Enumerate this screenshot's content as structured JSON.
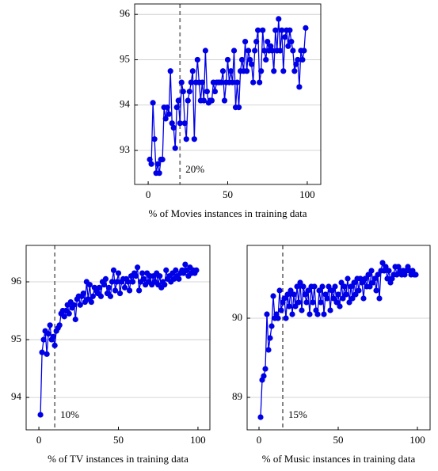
{
  "chart_data": [
    {
      "type": "line",
      "xlabel": "% of Movies instances in training data",
      "color": "#0000e6",
      "x": [
        1,
        2,
        3,
        4,
        5,
        6,
        7,
        8,
        9,
        10,
        11,
        12,
        13,
        14,
        15,
        16,
        17,
        18,
        19,
        20,
        21,
        22,
        23,
        24,
        25,
        26,
        27,
        28,
        29,
        30,
        31,
        32,
        33,
        34,
        35,
        36,
        37,
        38,
        39,
        40,
        41,
        42,
        43,
        44,
        45,
        46,
        47,
        48,
        49,
        50,
        51,
        52,
        53,
        54,
        55,
        56,
        57,
        58,
        59,
        60,
        61,
        62,
        63,
        64,
        65,
        66,
        67,
        68,
        69,
        70,
        71,
        72,
        73,
        74,
        75,
        76,
        77,
        78,
        79,
        80,
        81,
        82,
        83,
        84,
        85,
        86,
        87,
        88,
        89,
        90,
        91,
        92,
        93,
        94,
        95,
        96,
        97,
        98,
        99
      ],
      "values": [
        92.8,
        92.7,
        94.05,
        93.25,
        92.5,
        92.7,
        92.5,
        92.8,
        92.8,
        93.95,
        93.7,
        93.95,
        93.8,
        94.75,
        93.6,
        93.5,
        93.05,
        93.95,
        94.1,
        93.6,
        94.5,
        94.3,
        93.6,
        93.25,
        94.1,
        94.3,
        94.5,
        94.75,
        93.25,
        94.5,
        95.0,
        94.5,
        94.1,
        94.5,
        94.1,
        95.2,
        94.3,
        94.05,
        94.1,
        94.1,
        94.5,
        94.3,
        94.5,
        94.5,
        94.5,
        94.5,
        94.75,
        94.1,
        94.5,
        95.0,
        94.5,
        94.75,
        94.5,
        95.2,
        93.95,
        94.5,
        93.95,
        94.75,
        95.0,
        94.75,
        95.4,
        94.75,
        95.2,
        95.0,
        94.9,
        94.5,
        95.2,
        95.4,
        95.65,
        94.5,
        94.75,
        95.65,
        95.2,
        95.0,
        95.4,
        95.2,
        95.3,
        95.2,
        94.75,
        95.65,
        95.2,
        95.9,
        95.2,
        95.65,
        94.75,
        95.5,
        95.65,
        95.3,
        95.65,
        95.4,
        95.2,
        94.75,
        94.9,
        95.0,
        94.4,
        95.2,
        95.0,
        95.2,
        95.7
      ],
      "xlim": [
        -8.5,
        108.5
      ],
      "xticks": [
        0,
        50,
        100
      ],
      "ylim": [
        92.25,
        96.23
      ],
      "yticks": [
        93,
        94,
        95,
        96
      ],
      "grid": true,
      "vline": {
        "x": 20,
        "label": "20%"
      }
    },
    {
      "type": "line",
      "xlabel": "% of TV instances in training data",
      "color": "#0000e6",
      "x": [
        1,
        2,
        3,
        4,
        5,
        6,
        7,
        8,
        9,
        10,
        11,
        12,
        13,
        14,
        15,
        16,
        17,
        18,
        19,
        20,
        21,
        22,
        23,
        24,
        25,
        26,
        27,
        28,
        29,
        30,
        31,
        32,
        33,
        34,
        35,
        36,
        37,
        38,
        39,
        40,
        41,
        42,
        43,
        44,
        45,
        46,
        47,
        48,
        49,
        50,
        51,
        52,
        53,
        54,
        55,
        56,
        57,
        58,
        59,
        60,
        61,
        62,
        63,
        64,
        65,
        66,
        67,
        68,
        69,
        70,
        71,
        72,
        73,
        74,
        75,
        76,
        77,
        78,
        79,
        80,
        81,
        82,
        83,
        84,
        85,
        86,
        87,
        88,
        89,
        90,
        91,
        92,
        93,
        94,
        95,
        96,
        97,
        98,
        99
      ],
      "values": [
        93.7,
        94.78,
        95.0,
        95.15,
        94.75,
        95.1,
        95.25,
        95.0,
        95.05,
        94.9,
        95.15,
        95.2,
        95.25,
        95.45,
        95.5,
        95.4,
        95.5,
        95.6,
        95.45,
        95.65,
        95.55,
        95.6,
        95.35,
        95.7,
        95.75,
        95.6,
        95.75,
        95.8,
        95.65,
        96.0,
        95.7,
        95.95,
        95.65,
        95.75,
        95.9,
        95.85,
        95.8,
        95.9,
        95.75,
        96.0,
        95.95,
        96.05,
        95.8,
        95.9,
        95.75,
        96.0,
        96.2,
        95.85,
        96.0,
        96.15,
        95.8,
        96.0,
        96.05,
        95.9,
        96.05,
        96.0,
        95.85,
        96.1,
        96.0,
        96.15,
        96.1,
        96.25,
        95.85,
        96.0,
        96.15,
        96.05,
        95.95,
        96.15,
        96.0,
        96.1,
        95.95,
        96.1,
        96.0,
        96.15,
        95.95,
        96.1,
        95.9,
        96.0,
        95.95,
        96.2,
        96.05,
        96.1,
        96.0,
        96.15,
        96.05,
        96.2,
        96.1,
        96.05,
        96.15,
        96.2,
        96.15,
        96.3,
        96.2,
        96.1,
        96.25,
        96.15,
        96.2,
        96.15,
        96.2
      ],
      "xlim": [
        -8,
        107.5
      ],
      "xticks": [
        0,
        50,
        100
      ],
      "ylim": [
        93.44,
        96.63
      ],
      "yticks": [
        94,
        95,
        96
      ],
      "grid": true,
      "vline": {
        "x": 10,
        "label": "10%"
      }
    },
    {
      "type": "line",
      "xlabel": "% of Music instances in training data",
      "color": "#0000e6",
      "x": [
        1,
        2,
        3,
        4,
        5,
        6,
        7,
        8,
        9,
        10,
        11,
        12,
        13,
        14,
        15,
        16,
        17,
        18,
        19,
        20,
        21,
        22,
        23,
        24,
        25,
        26,
        27,
        28,
        29,
        30,
        31,
        32,
        33,
        34,
        35,
        36,
        37,
        38,
        39,
        40,
        41,
        42,
        43,
        44,
        45,
        46,
        47,
        48,
        49,
        50,
        51,
        52,
        53,
        54,
        55,
        56,
        57,
        58,
        59,
        60,
        61,
        62,
        63,
        64,
        65,
        66,
        67,
        68,
        69,
        70,
        71,
        72,
        73,
        74,
        75,
        76,
        77,
        78,
        79,
        80,
        81,
        82,
        83,
        84,
        85,
        86,
        87,
        88,
        89,
        90,
        91,
        92,
        93,
        94,
        95,
        96,
        97,
        98,
        99
      ],
      "values": [
        88.75,
        89.22,
        89.27,
        89.36,
        90.05,
        89.6,
        89.75,
        89.9,
        90.28,
        90.0,
        90.05,
        90.0,
        90.35,
        90.1,
        90.2,
        90.25,
        90.0,
        90.3,
        90.15,
        90.35,
        90.05,
        90.3,
        90.15,
        90.4,
        90.2,
        90.45,
        90.1,
        90.4,
        90.3,
        90.2,
        90.35,
        90.05,
        90.4,
        90.2,
        90.4,
        90.1,
        90.05,
        90.35,
        90.2,
        90.4,
        90.05,
        90.3,
        90.25,
        90.4,
        90.1,
        90.35,
        90.25,
        90.4,
        90.2,
        90.3,
        90.15,
        90.45,
        90.25,
        90.4,
        90.3,
        90.5,
        90.2,
        90.4,
        90.25,
        90.45,
        90.3,
        90.5,
        90.35,
        90.5,
        90.45,
        90.25,
        90.5,
        90.4,
        90.55,
        90.4,
        90.6,
        90.45,
        90.5,
        90.35,
        90.55,
        90.25,
        90.6,
        90.7,
        90.6,
        90.65,
        90.5,
        90.6,
        90.45,
        90.5,
        90.55,
        90.65,
        90.55,
        90.65,
        90.6,
        90.55,
        90.6,
        90.55,
        90.6,
        90.65,
        90.6,
        90.55,
        90.6,
        90.55,
        90.55
      ],
      "xlim": [
        -7.5,
        108
      ],
      "xticks": [
        0,
        50,
        100
      ],
      "ylim": [
        88.59,
        90.92
      ],
      "yticks": [
        89,
        90
      ],
      "grid": true,
      "vline": {
        "x": 15,
        "label": "15%"
      }
    }
  ]
}
